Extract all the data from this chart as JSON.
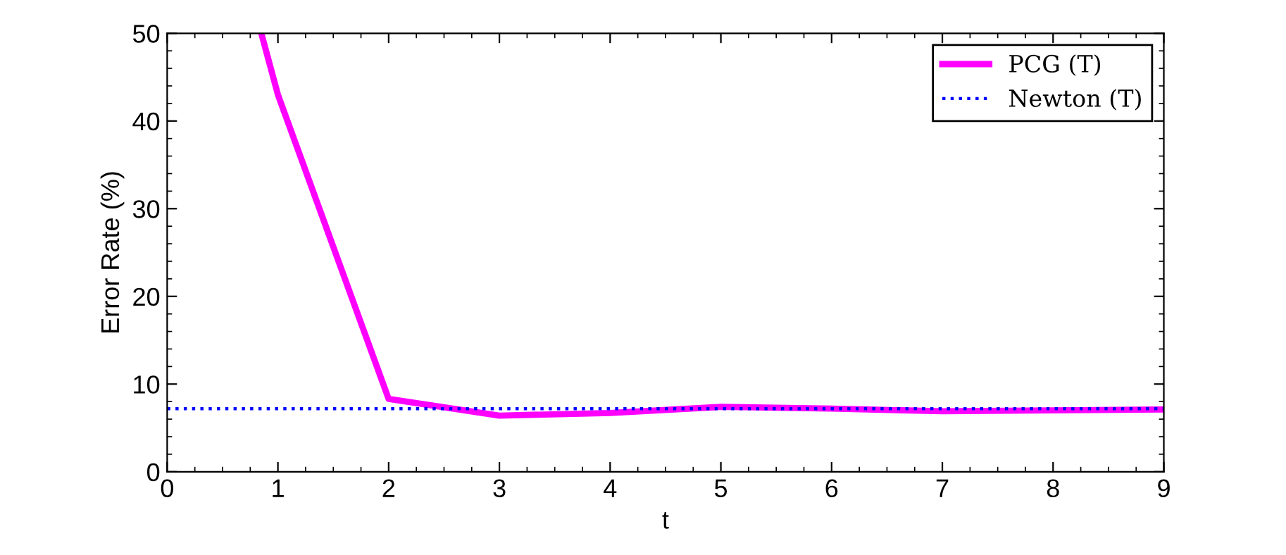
{
  "chart_data": {
    "type": "line",
    "xlabel": "t",
    "ylabel": "Error Rate (%)",
    "xlim": [
      0,
      9
    ],
    "ylim": [
      0,
      50
    ],
    "xticks": [
      0,
      1,
      2,
      3,
      4,
      5,
      6,
      7,
      8,
      9
    ],
    "yticks": [
      0,
      10,
      20,
      30,
      40,
      50
    ],
    "grid": false,
    "legend": "top right",
    "series": [
      {
        "name": "PCG (T)",
        "color": "#ff00ff",
        "line_style": "solid",
        "x": [
          0.85,
          1,
          2,
          3,
          4,
          5,
          6,
          7,
          8,
          9
        ],
        "values": [
          50,
          43,
          8.3,
          6.4,
          6.7,
          7.4,
          7.2,
          6.9,
          7.0,
          7.1
        ]
      },
      {
        "name": "Newton (T)",
        "color": "#0000ff",
        "line_style": "dotted",
        "x": [
          0,
          9
        ],
        "values": [
          7.2,
          7.2
        ]
      }
    ]
  }
}
